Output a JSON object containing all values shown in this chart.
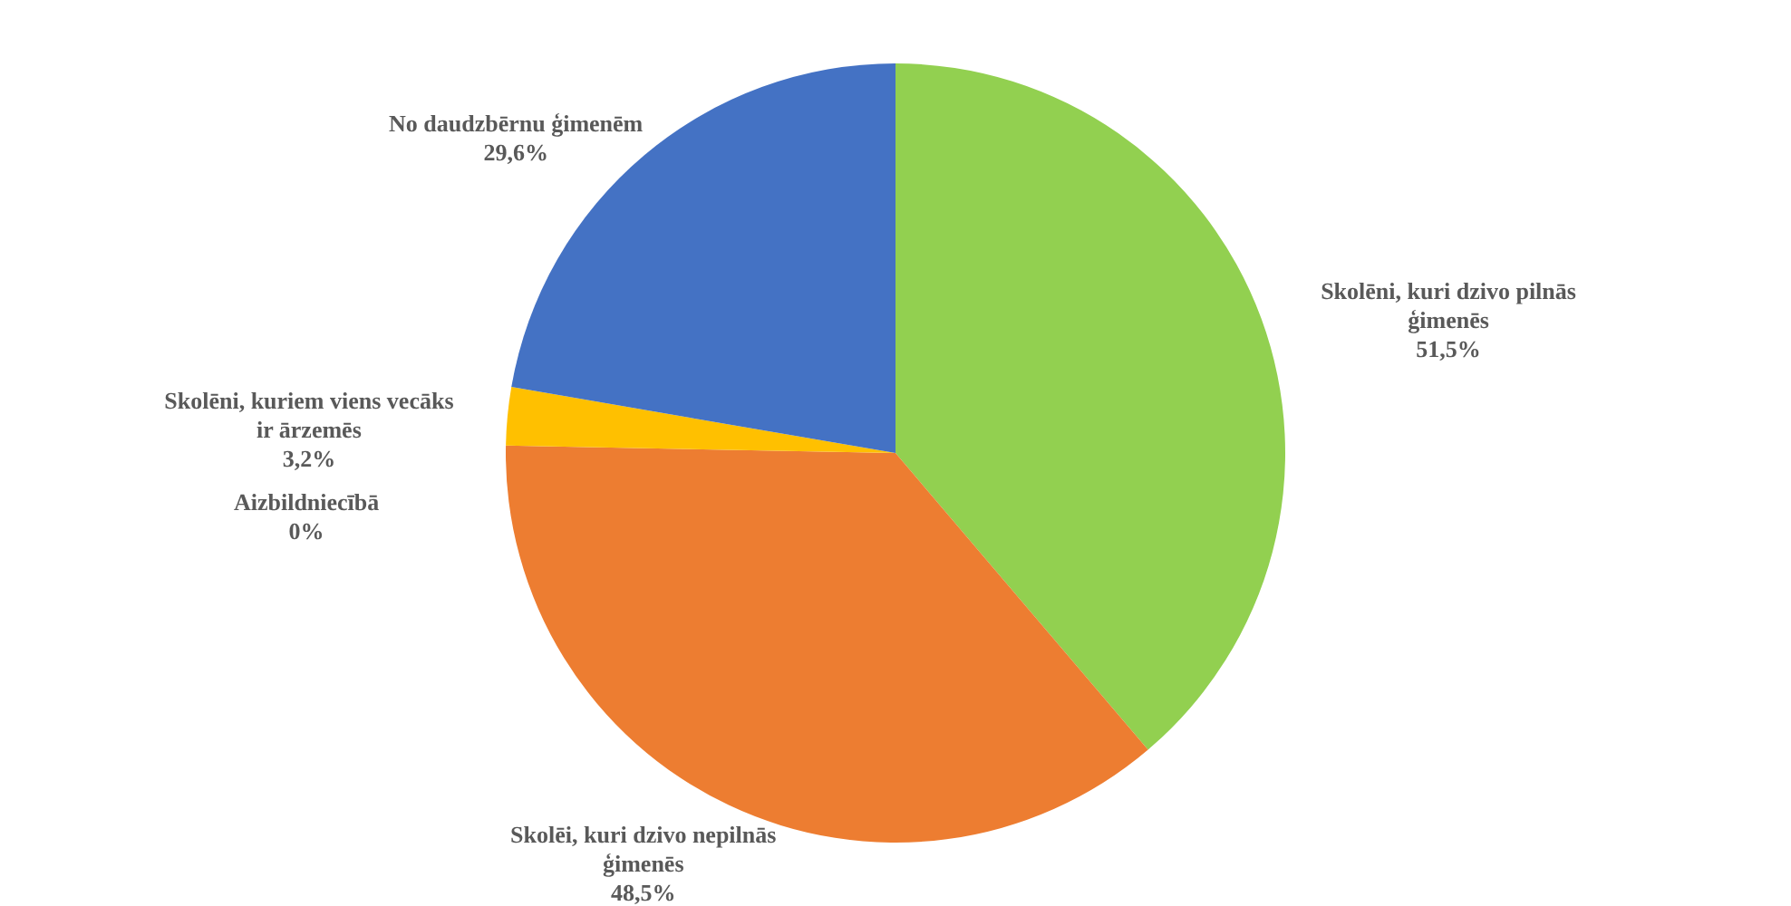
{
  "chart_data": {
    "type": "pie",
    "categories": [
      "Skolēni, kuri dzivo pilnās ģimenēs",
      "Skolēi, kuri dzivo nepilnās ģimenēs",
      "Aizbildniecībā",
      "Skolēni, kuriem viens vecāks ir ārzemēs",
      "No daudzbērnu ģimenēm"
    ],
    "values": [
      51.5,
      48.5,
      0,
      3.2,
      29.6
    ],
    "value_labels": [
      "51,5%",
      "48,5%",
      "0%",
      "3,2%",
      "29,6%"
    ],
    "colors": [
      "#92d050",
      "#ed7d31",
      "#595959",
      "#ffc000",
      "#4472c4"
    ]
  }
}
